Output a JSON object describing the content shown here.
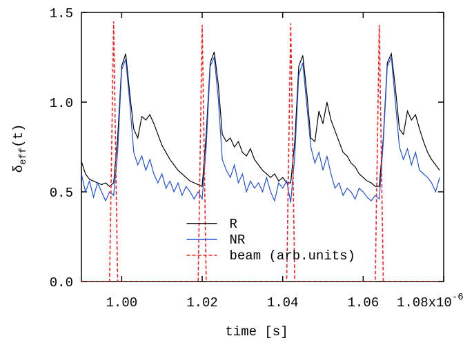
{
  "chart_data": {
    "type": "line",
    "ylabel": {
      "symbol": "δ",
      "subscript": "eff",
      "suffix": "(t)"
    },
    "xlabel": "time [s]",
    "x_multiplier": {
      "base": "x10",
      "exponent": "-6"
    },
    "x": [
      0.99,
      0.991,
      0.992,
      0.993,
      0.994,
      0.995,
      0.996,
      0.997,
      0.998,
      0.999,
      1.0,
      1.001,
      1.002,
      1.003,
      1.004,
      1.005,
      1.006,
      1.007,
      1.008,
      1.009,
      1.01,
      1.011,
      1.012,
      1.013,
      1.014,
      1.015,
      1.016,
      1.017,
      1.018,
      1.019,
      1.02,
      1.021,
      1.022,
      1.023,
      1.024,
      1.025,
      1.026,
      1.027,
      1.028,
      1.029,
      1.03,
      1.031,
      1.032,
      1.033,
      1.034,
      1.035,
      1.036,
      1.037,
      1.038,
      1.039,
      1.04,
      1.041,
      1.042,
      1.043,
      1.044,
      1.045,
      1.046,
      1.047,
      1.048,
      1.049,
      1.05,
      1.051,
      1.052,
      1.053,
      1.054,
      1.055,
      1.056,
      1.057,
      1.058,
      1.059,
      1.06,
      1.061,
      1.062,
      1.063,
      1.064,
      1.065,
      1.066,
      1.067,
      1.068,
      1.069,
      1.07,
      1.071,
      1.072,
      1.073,
      1.074,
      1.075,
      1.076,
      1.077,
      1.078,
      1.079
    ],
    "series": [
      {
        "name": "R",
        "color": "#000000",
        "linestyle": "solid",
        "values": [
          0.67,
          0.6,
          0.57,
          0.56,
          0.55,
          0.54,
          0.55,
          0.53,
          0.55,
          0.8,
          1.2,
          1.27,
          1.05,
          0.85,
          0.8,
          0.92,
          0.9,
          0.93,
          0.88,
          0.82,
          0.76,
          0.72,
          0.68,
          0.65,
          0.62,
          0.6,
          0.58,
          0.56,
          0.55,
          0.54,
          0.53,
          0.82,
          1.22,
          1.28,
          1.1,
          0.82,
          0.78,
          0.8,
          0.75,
          0.78,
          0.72,
          0.7,
          0.74,
          0.68,
          0.65,
          0.62,
          0.6,
          0.58,
          0.6,
          0.56,
          0.58,
          0.55,
          0.55,
          0.78,
          1.2,
          1.26,
          1.05,
          0.8,
          0.78,
          0.95,
          0.88,
          1.0,
          0.9,
          0.84,
          0.78,
          0.72,
          0.7,
          0.66,
          0.64,
          0.6,
          0.58,
          0.56,
          0.55,
          0.53,
          0.53,
          0.8,
          1.22,
          1.27,
          1.08,
          0.85,
          0.82,
          0.95,
          0.9,
          0.93,
          0.85,
          0.78,
          0.72,
          0.68,
          0.65,
          0.62
        ]
      },
      {
        "name": "NR",
        "color": "#1f4fe0",
        "linestyle": "solid",
        "values": [
          0.6,
          0.5,
          0.56,
          0.47,
          0.55,
          0.5,
          0.45,
          0.5,
          0.48,
          0.72,
          1.18,
          1.24,
          1.0,
          0.72,
          0.65,
          0.7,
          0.62,
          0.68,
          0.6,
          0.55,
          0.6,
          0.52,
          0.56,
          0.5,
          0.55,
          0.48,
          0.53,
          0.5,
          0.46,
          0.5,
          0.46,
          0.75,
          1.2,
          1.25,
          1.02,
          0.68,
          0.62,
          0.58,
          0.65,
          0.55,
          0.6,
          0.5,
          0.56,
          0.52,
          0.55,
          0.5,
          0.58,
          0.5,
          0.45,
          0.55,
          0.52,
          0.56,
          0.44,
          0.7,
          1.15,
          1.22,
          0.98,
          0.75,
          0.66,
          0.72,
          0.62,
          0.7,
          0.6,
          0.52,
          0.55,
          0.48,
          0.52,
          0.5,
          0.46,
          0.52,
          0.5,
          0.47,
          0.45,
          0.48,
          0.46,
          0.78,
          1.2,
          1.25,
          1.0,
          0.75,
          0.68,
          0.74,
          0.65,
          0.72,
          0.62,
          0.6,
          0.58,
          0.55,
          0.5,
          0.58
        ]
      },
      {
        "name": "beam (arb.units)",
        "color": "#ff2020",
        "linestyle": "dashed",
        "values": [
          0,
          0,
          0,
          0,
          0,
          0,
          0,
          0,
          1.45,
          0,
          0,
          0,
          0,
          0,
          0,
          0,
          0,
          0,
          0,
          0,
          0,
          0,
          0,
          0,
          0,
          0,
          0,
          0,
          0,
          0,
          1.43,
          0,
          0,
          0,
          0,
          0,
          0,
          0,
          0,
          0,
          0,
          0,
          0,
          0,
          0,
          0,
          0,
          0,
          0,
          0,
          0,
          0,
          1.44,
          0,
          0,
          0,
          0,
          0,
          0,
          0,
          0,
          0,
          0,
          0,
          0,
          0,
          0,
          0,
          0,
          0,
          0,
          0,
          0,
          0,
          1.43,
          0,
          0,
          0,
          0,
          0,
          0,
          0,
          0,
          0,
          0,
          0,
          0,
          0,
          0,
          0
        ]
      }
    ],
    "xlim": [
      0.99,
      1.08
    ],
    "ylim": [
      0,
      1.5
    ],
    "xticks": [
      {
        "value": 1.0,
        "label": "1.00"
      },
      {
        "value": 1.02,
        "label": "1.02"
      },
      {
        "value": 1.04,
        "label": "1.04"
      },
      {
        "value": 1.06,
        "label": "1.06"
      },
      {
        "value": 1.08,
        "label": "1.08"
      }
    ],
    "yticks": [
      {
        "value": 0,
        "label": "0.0"
      },
      {
        "value": 0.5,
        "label": "0.5"
      },
      {
        "value": 1.0,
        "label": "1.0"
      },
      {
        "value": 1.5,
        "label": "1.5"
      }
    ],
    "legend": "lower center",
    "grid": false
  }
}
